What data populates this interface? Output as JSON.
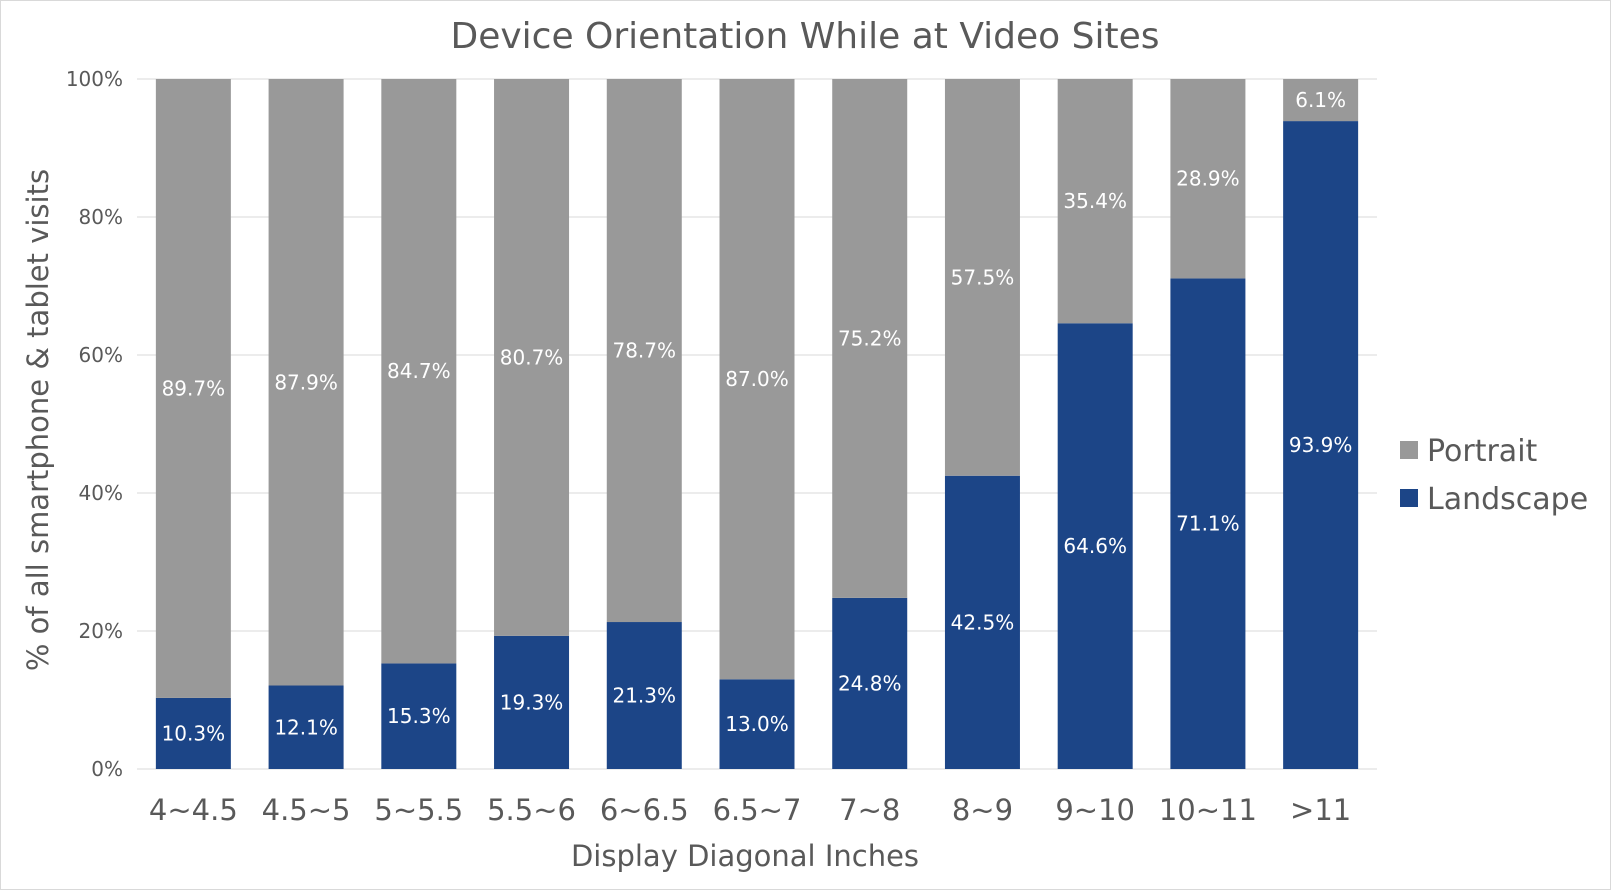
{
  "chart_data": {
    "type": "bar",
    "stacked": true,
    "title": "Device Orientation While at Video Sites",
    "xlabel": "Display Diagonal Inches",
    "ylabel": "% of all smartphone & tablet visits",
    "ylim": [
      0,
      100
    ],
    "yticks": [
      "0%",
      "20%",
      "40%",
      "60%",
      "80%",
      "100%"
    ],
    "grid": true,
    "legend_position": "right",
    "categories": [
      "4~4.5",
      "4.5~5",
      "5~5.5",
      "5.5~6",
      "6~6.5",
      "6.5~7",
      "7~8",
      "8~9",
      "9~10",
      "10~11",
      ">11"
    ],
    "series": [
      {
        "name": "Landscape",
        "color": "#1c4587",
        "values": [
          10.3,
          12.1,
          15.3,
          19.3,
          21.3,
          13.0,
          24.8,
          42.5,
          64.6,
          71.1,
          93.9
        ],
        "labels": [
          "10.3%",
          "12.1%",
          "15.3%",
          "19.3%",
          "21.3%",
          "13.0%",
          "24.8%",
          "42.5%",
          "64.6%",
          "71.1%",
          "93.9%"
        ]
      },
      {
        "name": "Portrait",
        "color": "#999999",
        "values": [
          89.7,
          87.9,
          84.7,
          80.7,
          78.7,
          87.0,
          75.2,
          57.5,
          35.4,
          28.9,
          6.1
        ],
        "labels": [
          "89.7%",
          "87.9%",
          "84.7%",
          "80.7%",
          "78.7%",
          "87.0%",
          "75.2%",
          "57.5%",
          "35.4%",
          "28.9%",
          "6.1%"
        ]
      }
    ],
    "legend_order": [
      "Portrait",
      "Landscape"
    ]
  }
}
